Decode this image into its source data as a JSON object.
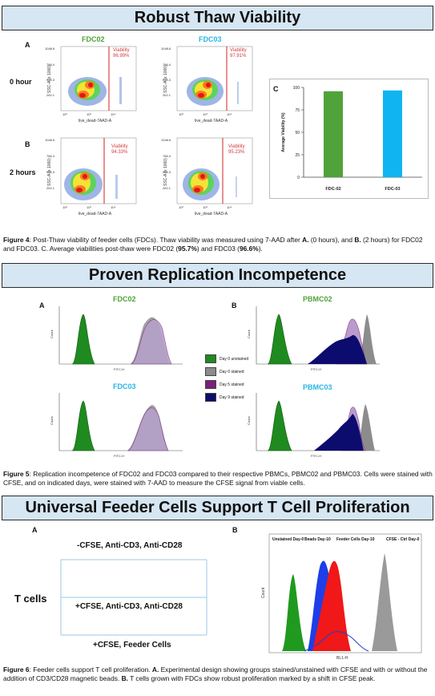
{
  "section1": {
    "title": "Robust Thaw Viability",
    "panel_a": "A",
    "panel_b": "B",
    "panel_c": "C",
    "row_labels": [
      "0 hour",
      "2 hours"
    ],
    "samples": [
      "FDC02",
      "FDC03"
    ],
    "viability_label": "Viability",
    "flow_values": [
      "96.99%",
      "97.91%",
      "94.33%",
      "95.23%"
    ],
    "xaxis": "live_dead-7AAD-A",
    "yaxis": "SSC-A (x 1000)",
    "caption_prefix": "Figure 4",
    "caption_text": ": Post-Thaw viability of feeder cells (FDCs). Thaw viability was measured using 7-AAD after ",
    "caption_a": "A.",
    "caption_mid1": " (0 hours), and ",
    "caption_b": "B.",
    "caption_mid2": " (2 hours) for FDC02 and FDC03. C. Average viabilities post-thaw were FDC02 (",
    "caption_v1": "95.7%",
    "caption_mid3": ") and FDC03 (",
    "caption_v2": "96.6%",
    "caption_end": ")."
  },
  "chart_data": {
    "type": "bar",
    "categories": [
      "FDC-02",
      "FDC-03"
    ],
    "values": [
      95.7,
      96.6
    ],
    "ylabel": "Average Viability (%)",
    "ylim": [
      0,
      100
    ],
    "yticks": [
      0,
      25,
      50,
      75,
      100
    ],
    "colors": [
      "#4fa33a",
      "#10b4f0"
    ]
  },
  "section2": {
    "title": "Proven Replication Incompetence",
    "panel_a": "A",
    "panel_b": "B",
    "samples": [
      "FDC02",
      "FDC03",
      "PBMC02",
      "PBMC03"
    ],
    "legend": [
      {
        "label": "Day 0 unstained",
        "color": "#1f8a1f"
      },
      {
        "label": "Day 0 stained",
        "color": "#8c8c8c"
      },
      {
        "label": "Day 5 stained",
        "color": "#7a1f7a"
      },
      {
        "label": "Day 9 stained",
        "color": "#0c0c6e"
      }
    ],
    "caption_prefix": "Figure 5",
    "caption_text": ": Replication incompetence of FDC02 and FDC03 compared to their respective PBMCs, PBMC02 and PBMC03. Cells were stained with CFSE, and on indicated days, were stained with 7-AAD to measure the CFSE signal from viable cells."
  },
  "section3": {
    "title": "Universal Feeder Cells Support T Cell Proliferation",
    "panel_a": "A",
    "panel_b": "B",
    "tcells": "T cells",
    "groups": [
      "-CFSE, Anti-CD3, Anti-CD28",
      "+CFSE, Anti-CD3, Anti-CD28",
      "+CFSE, Feeder Cells"
    ],
    "hist_labels": [
      "Unstained Day-0",
      "Beads Day-10",
      "Feeder Cells Day-10",
      "CFSE - Ctrl Day-0"
    ],
    "xaxis": "BL1-H",
    "yaxis": "Count",
    "caption_prefix": "Figure 6",
    "caption_text": ": Feeder cells support T cell proliferation. ",
    "caption_a": "A.",
    "caption_mid": " Experimental design showing groups stained/unstained with CFSE and with or without the addition of CD3/CD28 magnetic beads. ",
    "caption_b": "B.",
    "caption_end": " T cells grown with FDCs show robust proliferation marked by a shift in CFSE peak."
  }
}
